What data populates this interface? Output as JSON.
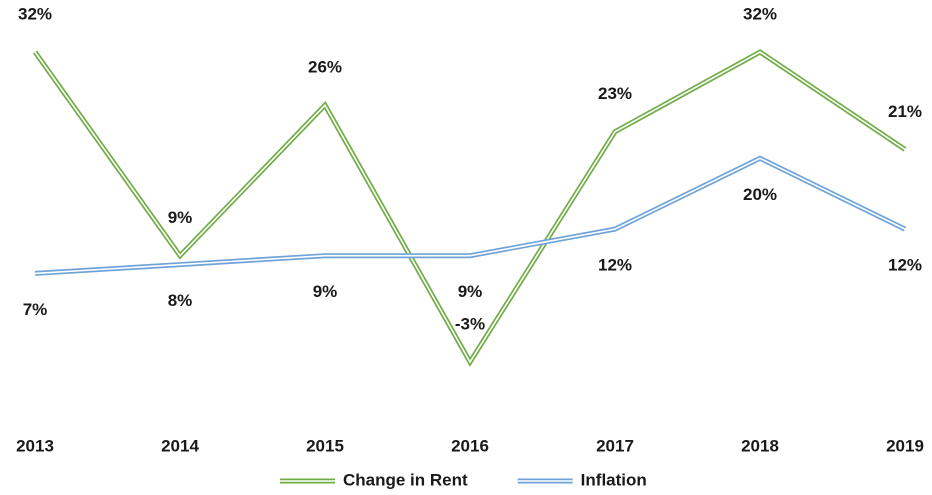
{
  "chart_data": {
    "type": "line",
    "categories": [
      "2013",
      "2014",
      "2015",
      "2016",
      "2017",
      "2018",
      "2019"
    ],
    "series": [
      {
        "name": "Change in Rent",
        "color": "#70ad47",
        "values": [
          32,
          9,
          26,
          -3,
          23,
          32,
          21
        ],
        "value_labels": [
          "32%",
          "9%",
          "26%",
          "-3%",
          "23%",
          "32%",
          "21%"
        ]
      },
      {
        "name": "Inflation",
        "color": "#6fa3d8",
        "values": [
          7,
          8,
          9,
          9,
          12,
          20,
          12
        ],
        "value_labels": [
          "7%",
          "8%",
          "9%",
          "9%",
          "12%",
          "20%",
          "12%"
        ]
      }
    ],
    "legend": "bottom"
  }
}
